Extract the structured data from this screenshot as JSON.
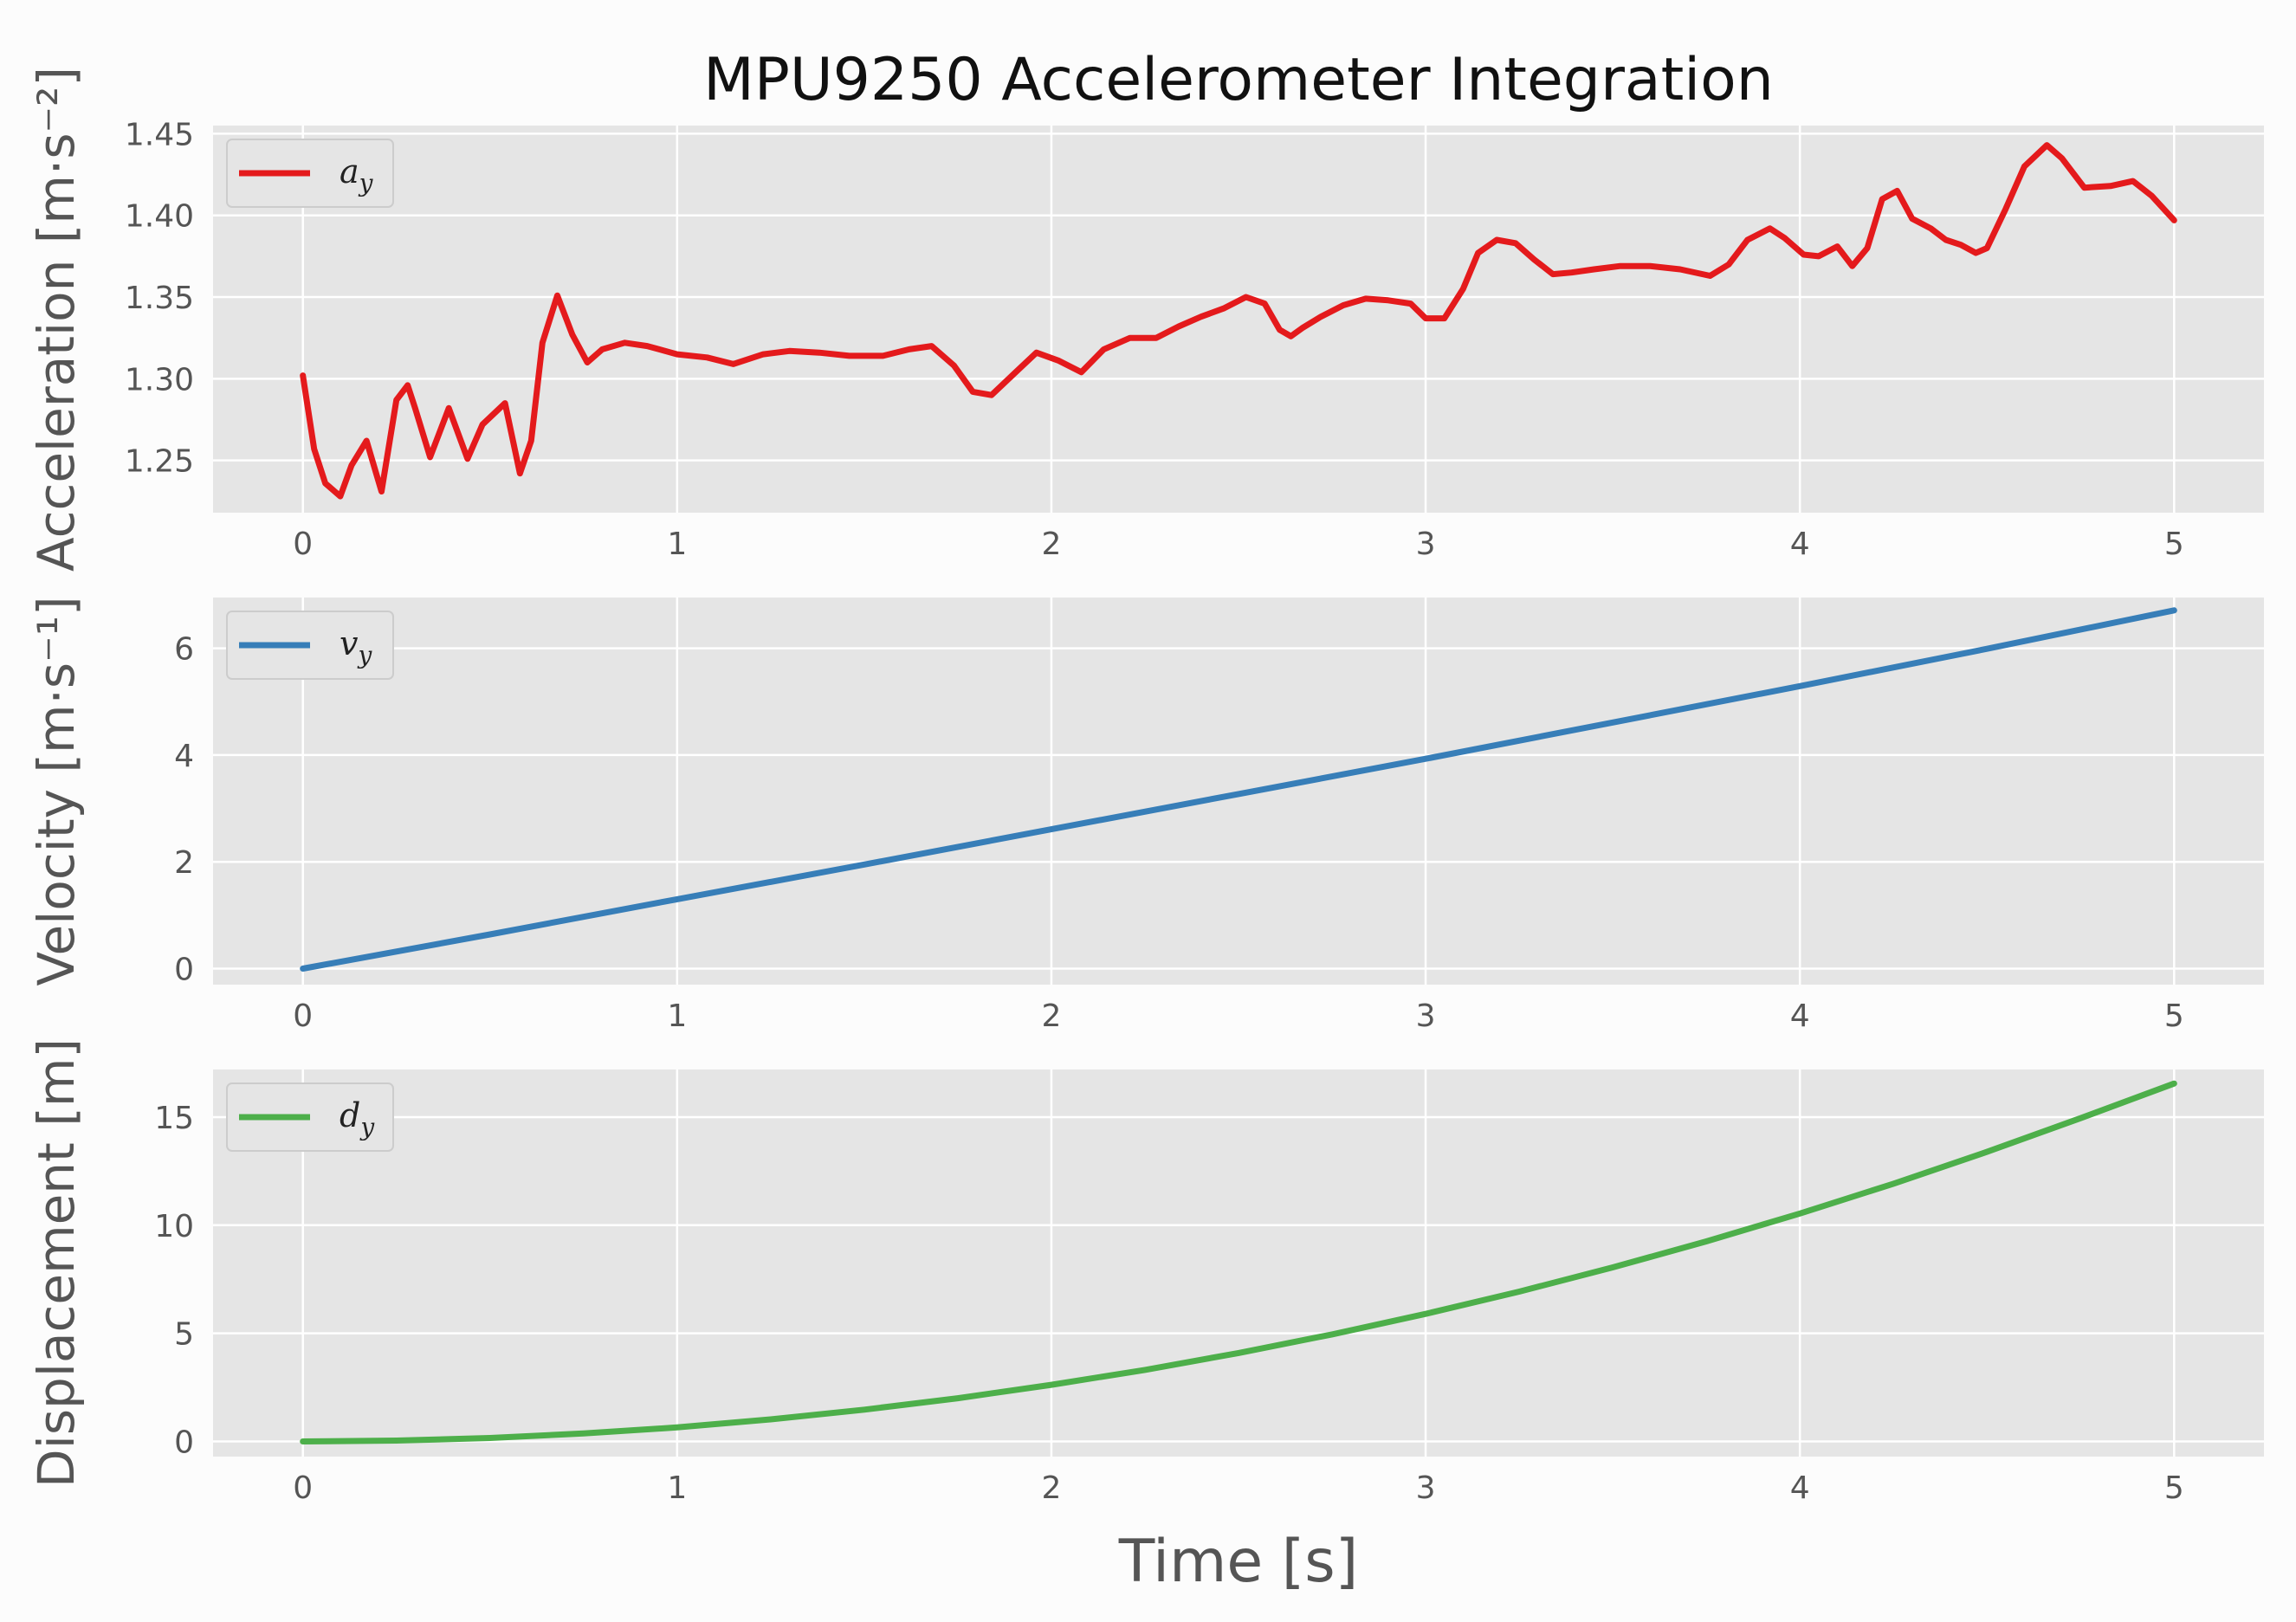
{
  "figure": {
    "title": "MPU9250 Accelerometer Integration",
    "xlabel": "Time [s]"
  },
  "colors": {
    "background": "#fcfcfc",
    "axes_face": "#e5e5e5",
    "grid": "#ffffff",
    "text": "#555555"
  },
  "chart_data": [
    {
      "type": "line",
      "ylabel": "Acceleration [m·s⁻²]",
      "xlim": [
        -0.24,
        5.24
      ],
      "ylim": [
        1.218,
        1.455
      ],
      "xticks": [
        0,
        1,
        2,
        3,
        4,
        5
      ],
      "yticks": [
        1.25,
        1.3,
        1.35,
        1.4,
        1.45
      ],
      "ytick_labels": [
        "1.25",
        "1.30",
        "1.35",
        "1.40",
        "1.45"
      ],
      "grid": true,
      "legend": "upper left",
      "series": [
        {
          "name": "a_y",
          "label_base": "a",
          "label_sub": "y",
          "color": "#e41a1c",
          "x": [
            0,
            0.03,
            0.06,
            0.1,
            0.13,
            0.17,
            0.21,
            0.25,
            0.28,
            0.3,
            0.34,
            0.39,
            0.44,
            0.48,
            0.54,
            0.58,
            0.61,
            0.64,
            0.68,
            0.72,
            0.76,
            0.8,
            0.86,
            0.92,
            1.0,
            1.08,
            1.15,
            1.23,
            1.3,
            1.38,
            1.46,
            1.55,
            1.62,
            1.68,
            1.74,
            1.79,
            1.84,
            1.9,
            1.96,
            2.02,
            2.08,
            2.14,
            2.21,
            2.28,
            2.34,
            2.4,
            2.46,
            2.52,
            2.57,
            2.61,
            2.64,
            2.67,
            2.72,
            2.78,
            2.84,
            2.9,
            2.96,
            3.0,
            3.05,
            3.1,
            3.14,
            3.19,
            3.24,
            3.29,
            3.34,
            3.39,
            3.45,
            3.52,
            3.6,
            3.68,
            3.76,
            3.81,
            3.86,
            3.92,
            3.96,
            4.01,
            4.05,
            4.1,
            4.14,
            4.18,
            4.22,
            4.26,
            4.3,
            4.35,
            4.39,
            4.43,
            4.47,
            4.5,
            4.55,
            4.6,
            4.66,
            4.7,
            4.76,
            4.83,
            4.89,
            4.94,
            5.0
          ],
          "values": [
            1.302,
            1.257,
            1.236,
            1.228,
            1.247,
            1.262,
            1.231,
            1.287,
            1.296,
            1.282,
            1.252,
            1.282,
            1.251,
            1.272,
            1.285,
            1.242,
            1.262,
            1.322,
            1.351,
            1.327,
            1.31,
            1.318,
            1.322,
            1.32,
            1.315,
            1.313,
            1.309,
            1.315,
            1.317,
            1.316,
            1.314,
            1.314,
            1.318,
            1.32,
            1.308,
            1.292,
            1.29,
            1.303,
            1.316,
            1.311,
            1.304,
            1.318,
            1.325,
            1.325,
            1.332,
            1.338,
            1.343,
            1.35,
            1.346,
            1.33,
            1.326,
            1.331,
            1.338,
            1.345,
            1.349,
            1.348,
            1.346,
            1.337,
            1.337,
            1.355,
            1.377,
            1.385,
            1.383,
            1.373,
            1.364,
            1.365,
            1.367,
            1.369,
            1.369,
            1.367,
            1.363,
            1.37,
            1.385,
            1.392,
            1.386,
            1.376,
            1.375,
            1.381,
            1.369,
            1.38,
            1.41,
            1.415,
            1.398,
            1.392,
            1.385,
            1.382,
            1.377,
            1.38,
            1.404,
            1.43,
            1.443,
            1.435,
            1.417,
            1.418,
            1.421,
            1.412,
            1.397
          ]
        }
      ]
    },
    {
      "type": "line",
      "ylabel": "Velocity [m·s⁻¹]",
      "xlim": [
        -0.24,
        5.24
      ],
      "ylim": [
        -0.3,
        6.95
      ],
      "xticks": [
        0,
        1,
        2,
        3,
        4,
        5
      ],
      "yticks": [
        0,
        2,
        4,
        6
      ],
      "ytick_labels": [
        "0",
        "2",
        "4",
        "6"
      ],
      "grid": true,
      "legend": "upper left",
      "series": [
        {
          "name": "v_y",
          "label_base": "v",
          "label_sub": "y",
          "color": "#377eb8",
          "x": [
            0,
            0.5,
            1,
            1.5,
            2,
            2.5,
            3,
            3.5,
            4,
            4.5,
            5
          ],
          "values": [
            0,
            0.64,
            1.3,
            1.95,
            2.61,
            3.27,
            3.93,
            4.61,
            5.29,
            5.99,
            6.71
          ]
        }
      ]
    },
    {
      "type": "line",
      "ylabel": "Displacement [m]",
      "xlim": [
        -0.24,
        5.24
      ],
      "ylim": [
        -0.7,
        17.2
      ],
      "xticks": [
        0,
        1,
        2,
        3,
        4,
        5
      ],
      "yticks": [
        0,
        5,
        10,
        15
      ],
      "ytick_labels": [
        "0",
        "5",
        "10",
        "15"
      ],
      "grid": true,
      "legend": "upper left",
      "series": [
        {
          "name": "d_y",
          "label_base": "d",
          "label_sub": "y",
          "color": "#4daf4a",
          "x": [
            0,
            0.25,
            0.5,
            0.75,
            1,
            1.25,
            1.5,
            1.75,
            2,
            2.25,
            2.5,
            2.75,
            3,
            3.25,
            3.5,
            3.75,
            4,
            4.25,
            4.5,
            4.75,
            5
          ],
          "values": [
            0,
            0.04,
            0.16,
            0.37,
            0.65,
            1.02,
            1.47,
            2.0,
            2.62,
            3.31,
            4.09,
            4.95,
            5.9,
            6.93,
            8.05,
            9.25,
            10.54,
            11.92,
            13.39,
            14.95,
            16.55
          ]
        }
      ]
    }
  ]
}
